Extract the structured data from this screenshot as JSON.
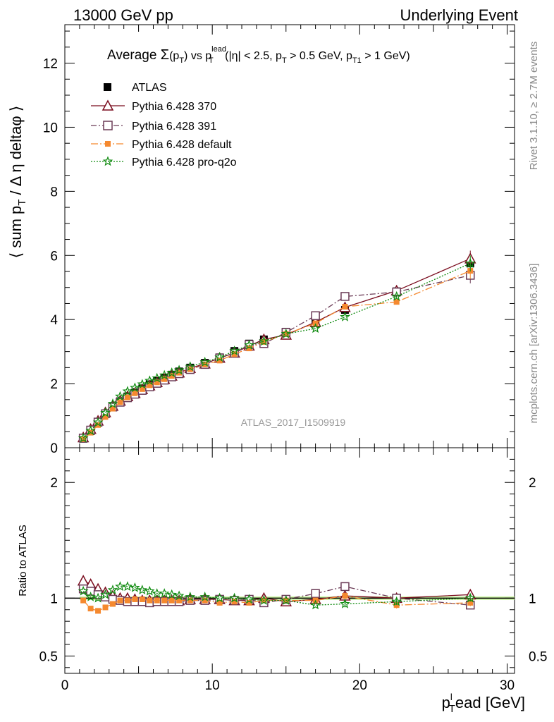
{
  "header": {
    "left": "13000 GeV pp",
    "right": "Underlying Event"
  },
  "side_labels": {
    "rivet": "Rivet 3.1.10, ≥ 2.7M events",
    "mcplots": "mcplots.cern.ch [arXiv:1306.3436]"
  },
  "watermark": "ATLAS_2017_I1509919",
  "colors": {
    "atlas": "#000000",
    "p370": "#7a0c1e",
    "p391": "#6b3b56",
    "pdefault": "#f5892f",
    "pq2o": "#0f8a0f",
    "band": "#c8f59a"
  },
  "chart_data": [
    {
      "type": "line",
      "title": "Average Σ(p_T) vs p_T^lead (|η| < 2.5, p_T > 0.5 GeV, p_T1 > 1 GeV)",
      "title_parts": {
        "prefix": "Average ",
        "sigma": "Σ",
        "paren_open": "(p",
        "paren_sub": "T",
        "paren_close": ")",
        "vs": " vs p",
        "vs_sup": "lead",
        "vs_sub": "T",
        "cut1": " (|η| < 2.5, p",
        "cut1_sub": "T",
        "cut2": " > 0.5 GeV, p",
        "cut2_sub": "T1",
        "cut3": " > 1 GeV)"
      },
      "ylabel_parts": {
        "main": "⟨ sum p",
        "sub": "T",
        "rest": " / Δ η deltaφ ⟩"
      },
      "xlabel_parts": {
        "main": "p",
        "sup": "l",
        "sub": "T",
        "rest": "ead [GeV]"
      },
      "xlim": [
        0,
        30.5
      ],
      "ylim": [
        0,
        13.2
      ],
      "x_ticks": [
        "0",
        "10",
        "20",
        "30"
      ],
      "y_ticks": [
        "0",
        "2",
        "4",
        "6",
        "8",
        "10",
        "12"
      ],
      "legend_position": "top-left",
      "series": [
        {
          "name": "ATLAS",
          "key": "atlas",
          "marker": "square-filled",
          "line": "none",
          "x": [
            1.25,
            1.75,
            2.25,
            2.75,
            3.25,
            3.75,
            4.25,
            4.75,
            5.25,
            5.75,
            6.25,
            6.75,
            7.25,
            7.75,
            8.5,
            9.5,
            10.5,
            11.5,
            12.5,
            13.5,
            15,
            17,
            19,
            22.5,
            27.5
          ],
          "y": [
            0.28,
            0.52,
            0.78,
            1.05,
            1.28,
            1.45,
            1.6,
            1.72,
            1.85,
            1.98,
            2.08,
            2.18,
            2.28,
            2.38,
            2.5,
            2.65,
            2.82,
            3.02,
            3.25,
            3.38,
            3.62,
            3.95,
            4.3,
            4.88,
            5.75
          ]
        },
        {
          "name": "Pythia 6.428 370",
          "key": "p370",
          "marker": "triangle-open",
          "line": "solid",
          "x": [
            1.25,
            1.75,
            2.25,
            2.75,
            3.25,
            3.75,
            4.25,
            4.75,
            5.25,
            5.75,
            6.25,
            6.75,
            7.25,
            7.75,
            8.5,
            9.5,
            10.5,
            11.5,
            12.5,
            13.5,
            15,
            17,
            19,
            22.5,
            27.5
          ],
          "y": [
            0.32,
            0.58,
            0.84,
            1.1,
            1.3,
            1.46,
            1.6,
            1.7,
            1.82,
            1.94,
            2.04,
            2.14,
            2.24,
            2.34,
            2.48,
            2.62,
            2.8,
            2.96,
            3.18,
            3.38,
            3.52,
            3.92,
            4.38,
            4.9,
            5.9
          ]
        },
        {
          "name": "Pythia 6.428 391",
          "key": "p391",
          "marker": "square-open",
          "line": "dashdot",
          "x": [
            1.25,
            1.75,
            2.25,
            2.75,
            3.25,
            3.75,
            4.25,
            4.75,
            5.25,
            5.75,
            6.25,
            6.75,
            7.25,
            7.75,
            8.5,
            9.5,
            10.5,
            11.5,
            12.5,
            13.5,
            15,
            17,
            19,
            22.5,
            27.5
          ],
          "y": [
            0.3,
            0.55,
            0.8,
            1.06,
            1.27,
            1.42,
            1.56,
            1.67,
            1.79,
            1.9,
            2.01,
            2.11,
            2.21,
            2.31,
            2.44,
            2.6,
            2.8,
            2.95,
            3.22,
            3.25,
            3.6,
            4.12,
            4.72,
            4.86,
            5.38
          ]
        },
        {
          "name": "Pythia 6.428 default",
          "key": "pdefault",
          "marker": "square-filled-small",
          "line": "dashdot-long",
          "x": [
            1.25,
            1.75,
            2.25,
            2.75,
            3.25,
            3.75,
            4.25,
            4.75,
            5.25,
            5.75,
            6.25,
            6.75,
            7.25,
            7.75,
            8.5,
            9.5,
            10.5,
            11.5,
            12.5,
            13.5,
            15,
            17,
            19,
            22.5,
            27.5
          ],
          "y": [
            0.27,
            0.47,
            0.71,
            0.96,
            1.22,
            1.42,
            1.57,
            1.7,
            1.83,
            1.95,
            2.04,
            2.14,
            2.24,
            2.34,
            2.45,
            2.6,
            2.72,
            2.92,
            3.1,
            3.3,
            3.55,
            3.88,
            4.4,
            4.55,
            5.52
          ]
        },
        {
          "name": "Pythia 6.428 pro-q2o",
          "key": "pq2o",
          "marker": "star-open",
          "line": "dotted",
          "x": [
            1.25,
            1.75,
            2.25,
            2.75,
            3.25,
            3.75,
            4.25,
            4.75,
            5.25,
            5.75,
            6.25,
            6.75,
            7.25,
            7.75,
            8.5,
            9.5,
            10.5,
            11.5,
            12.5,
            13.5,
            15,
            17,
            19,
            22.5,
            27.5
          ],
          "y": [
            0.3,
            0.53,
            0.79,
            1.09,
            1.37,
            1.6,
            1.76,
            1.87,
            1.98,
            2.09,
            2.17,
            2.26,
            2.34,
            2.42,
            2.53,
            2.67,
            2.82,
            3.02,
            3.2,
            3.32,
            3.55,
            3.72,
            4.08,
            4.72,
            5.75
          ]
        }
      ]
    },
    {
      "type": "line",
      "ylabel": "Ratio to ATLAS",
      "xlim": [
        0,
        30.5
      ],
      "ylim": [
        0.35,
        2.3
      ],
      "y_ticks": [
        "0.5",
        "1",
        "2"
      ],
      "reference_line": 1,
      "series": [
        {
          "name": "Pythia 6.428 370",
          "key": "p370",
          "x": [
            1.25,
            1.75,
            2.25,
            2.75,
            3.25,
            3.75,
            4.25,
            4.75,
            5.25,
            5.75,
            6.25,
            6.75,
            7.25,
            7.75,
            8.5,
            9.5,
            10.5,
            11.5,
            12.5,
            13.5,
            15,
            17,
            19,
            22.5,
            27.5
          ],
          "y": [
            1.15,
            1.12,
            1.08,
            1.05,
            1.02,
            1.0,
            1.0,
            0.99,
            0.98,
            0.98,
            0.98,
            0.98,
            0.98,
            0.98,
            0.99,
            0.99,
            0.99,
            0.98,
            0.98,
            1.0,
            0.97,
            0.99,
            1.02,
            1.0,
            1.03
          ]
        },
        {
          "name": "Pythia 6.428 391",
          "key": "p391",
          "x": [
            1.25,
            1.75,
            2.25,
            2.75,
            3.25,
            3.75,
            4.25,
            4.75,
            5.25,
            5.75,
            6.25,
            6.75,
            7.25,
            7.75,
            8.5,
            9.5,
            10.5,
            11.5,
            12.5,
            13.5,
            15,
            17,
            19,
            22.5,
            27.5
          ],
          "y": [
            1.08,
            1.06,
            1.03,
            1.01,
            0.99,
            0.98,
            0.97,
            0.97,
            0.97,
            0.96,
            0.97,
            0.97,
            0.97,
            0.97,
            0.98,
            0.98,
            0.99,
            0.98,
            0.99,
            0.96,
            0.99,
            1.04,
            1.1,
            1.0,
            0.94
          ]
        },
        {
          "name": "Pythia 6.428 default",
          "key": "pdefault",
          "x": [
            1.25,
            1.75,
            2.25,
            2.75,
            3.25,
            3.75,
            4.25,
            4.75,
            5.25,
            5.75,
            6.25,
            6.75,
            7.25,
            7.75,
            8.5,
            9.5,
            10.5,
            11.5,
            12.5,
            13.5,
            15,
            17,
            19,
            22.5,
            27.5
          ],
          "y": [
            0.98,
            0.91,
            0.89,
            0.92,
            0.95,
            0.98,
            0.98,
            0.99,
            0.99,
            0.98,
            0.98,
            0.98,
            0.98,
            0.98,
            0.98,
            0.98,
            0.96,
            0.97,
            0.96,
            0.98,
            0.98,
            0.98,
            1.02,
            0.94,
            0.96
          ]
        },
        {
          "name": "Pythia 6.428 pro-q2o",
          "key": "pq2o",
          "x": [
            1.25,
            1.75,
            2.25,
            2.75,
            3.25,
            3.75,
            4.25,
            4.75,
            5.25,
            5.75,
            6.25,
            6.75,
            7.25,
            7.75,
            8.5,
            9.5,
            10.5,
            11.5,
            12.5,
            13.5,
            15,
            17,
            19,
            22.5,
            27.5
          ],
          "y": [
            1.06,
            1.01,
            1.0,
            1.03,
            1.07,
            1.1,
            1.1,
            1.09,
            1.07,
            1.06,
            1.04,
            1.04,
            1.03,
            1.02,
            1.01,
            1.01,
            1.0,
            1.0,
            0.99,
            0.98,
            0.98,
            0.94,
            0.95,
            0.97,
            1.0
          ]
        }
      ]
    }
  ]
}
